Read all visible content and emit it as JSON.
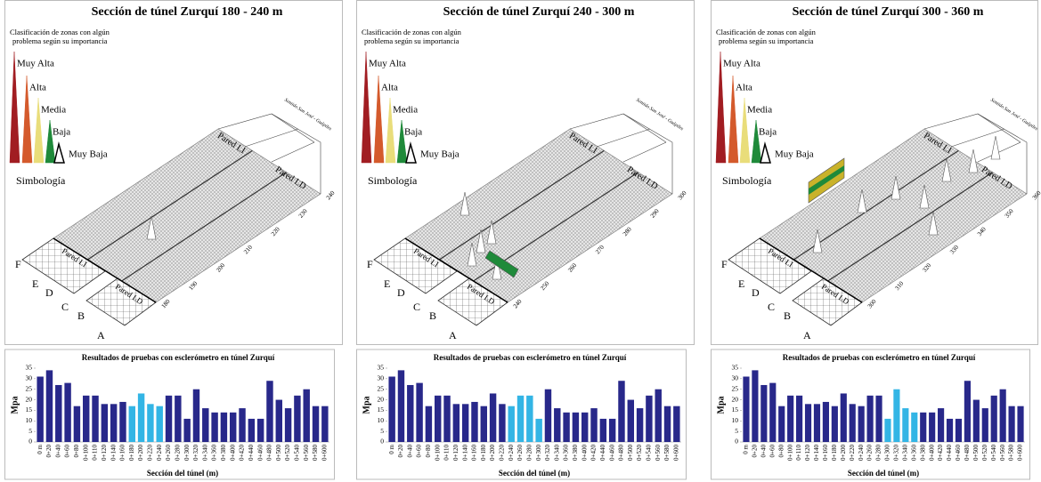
{
  "diagrams": [
    {
      "title": "Sección de túnel Zurquí 180 - 240 m",
      "legend_title": [
        "Clasificación de zonas con algún",
        "problema según su importancia"
      ],
      "levels": [
        "Muy Alta",
        "Alta",
        "Media",
        "Baja",
        "Muy Baja"
      ],
      "symbology": "Simbología",
      "walls": [
        "Pared LI",
        "Pared LD"
      ],
      "direction": "Sentido San José - Guápiles",
      "letters": [
        "A",
        "B",
        "C",
        "D",
        "E",
        "F"
      ],
      "distances": [
        "180",
        "190",
        "200",
        "210",
        "220",
        "230",
        "240"
      ]
    },
    {
      "title": "Sección de túnel Zurquí 240 - 300 m",
      "legend_title": [
        "Clasificación de zonas con algún",
        "problema según su importancia"
      ],
      "levels": [
        "Muy Alta",
        "Alta",
        "Media",
        "Baja",
        "Muy Baja"
      ],
      "symbology": "Simbología",
      "walls": [
        "Pared LI",
        "Pared LD"
      ],
      "direction": "Sentido San José - Guápiles",
      "letters": [
        "A",
        "B",
        "C",
        "D",
        "E",
        "F"
      ],
      "distances": [
        "240",
        "250",
        "260",
        "270",
        "280",
        "290",
        "300"
      ]
    },
    {
      "title": "Sección de túnel Zurquí 300 - 360 m",
      "legend_title": [
        "Clasificación de zonas con algún",
        "problema según su importancia"
      ],
      "levels": [
        "Muy Alta",
        "Alta",
        "Media",
        "Baja",
        "Muy Baja"
      ],
      "symbology": "Simbología",
      "walls": [
        "Pared LI",
        "Pared LD"
      ],
      "direction": "Sentido San José - Guápiles",
      "letters": [
        "A",
        "B",
        "C",
        "D",
        "E",
        "F"
      ],
      "distances": [
        "300",
        "310",
        "320",
        "330",
        "340",
        "350",
        "360"
      ]
    }
  ],
  "chart_data": [
    {
      "type": "bar",
      "title": "Resultados de pruebas con esclerómetro en túnel Zurquí",
      "x_label": "Sección del túnel (m)",
      "y_label": "Mpa",
      "categories": [
        "0 m",
        "0+20",
        "0+40",
        "0+60",
        "0+80",
        "0+100",
        "0+110",
        "0+120",
        "0+140",
        "0+160",
        "0+180",
        "0+200",
        "0+220",
        "0+240",
        "0+260",
        "0+280",
        "0+300",
        "0+320",
        "0+340",
        "0+360",
        "0+380",
        "0+400",
        "0+420",
        "0+440",
        "0+460",
        "0+480",
        "0+500",
        "0+520",
        "0+540",
        "0+560",
        "0+580",
        "0+600"
      ],
      "values": [
        31,
        34,
        27,
        28,
        17,
        22,
        22,
        18,
        18,
        19,
        17,
        23,
        18,
        17,
        22,
        22,
        11,
        25,
        16,
        14,
        14,
        14,
        16,
        11,
        11,
        29,
        20,
        16,
        22,
        25,
        17,
        17
      ],
      "colors": [
        "#28288a",
        "#28288a",
        "#28288a",
        "#28288a",
        "#28288a",
        "#28288a",
        "#28288a",
        "#28288a",
        "#28288a",
        "#28288a",
        "#33b5e5",
        "#33b5e5",
        "#33b5e5",
        "#33b5e5",
        "#28288a",
        "#28288a",
        "#28288a",
        "#28288a",
        "#28288a",
        "#28288a",
        "#28288a",
        "#28288a",
        "#28288a",
        "#28288a",
        "#28288a",
        "#28288a",
        "#28288a",
        "#28288a",
        "#28288a",
        "#28288a",
        "#28288a",
        "#28288a"
      ],
      "ylim": [
        0,
        35
      ],
      "yticks": [
        0,
        5,
        10,
        15,
        20,
        25,
        30,
        35
      ]
    },
    {
      "type": "bar",
      "title": "Resultados de pruebas con esclerómetro en túnel Zurquí",
      "x_label": "Sección del túnel (m)",
      "y_label": "Mpa",
      "categories": [
        "0 m",
        "0+20",
        "0+40",
        "0+60",
        "0+80",
        "0+100",
        "0+110",
        "0+120",
        "0+140",
        "0+160",
        "0+180",
        "0+200",
        "0+220",
        "0+240",
        "0+260",
        "0+280",
        "0+300",
        "0+320",
        "0+340",
        "0+360",
        "0+380",
        "0+400",
        "0+420",
        "0+440",
        "0+460",
        "0+480",
        "0+500",
        "0+520",
        "0+540",
        "0+560",
        "0+580",
        "0+600"
      ],
      "values": [
        31,
        34,
        27,
        28,
        17,
        22,
        22,
        18,
        18,
        19,
        17,
        23,
        18,
        17,
        22,
        22,
        11,
        25,
        16,
        14,
        14,
        14,
        16,
        11,
        11,
        29,
        20,
        16,
        22,
        25,
        17,
        17
      ],
      "colors": [
        "#28288a",
        "#28288a",
        "#28288a",
        "#28288a",
        "#28288a",
        "#28288a",
        "#28288a",
        "#28288a",
        "#28288a",
        "#28288a",
        "#28288a",
        "#28288a",
        "#28288a",
        "#33b5e5",
        "#33b5e5",
        "#33b5e5",
        "#33b5e5",
        "#28288a",
        "#28288a",
        "#28288a",
        "#28288a",
        "#28288a",
        "#28288a",
        "#28288a",
        "#28288a",
        "#28288a",
        "#28288a",
        "#28288a",
        "#28288a",
        "#28288a",
        "#28288a",
        "#28288a"
      ],
      "ylim": [
        0,
        35
      ],
      "yticks": [
        0,
        5,
        10,
        15,
        20,
        25,
        30,
        35
      ]
    },
    {
      "type": "bar",
      "title": "Resultados de pruebas con esclerómetro en túnel Zurquí",
      "x_label": "Sección del túnel (m)",
      "y_label": "Mpa",
      "categories": [
        "0 m",
        "0+20",
        "0+40",
        "0+60",
        "0+80",
        "0+100",
        "0+110",
        "0+120",
        "0+140",
        "0+160",
        "0+180",
        "0+200",
        "0+220",
        "0+240",
        "0+260",
        "0+280",
        "0+300",
        "0+320",
        "0+340",
        "0+360",
        "0+380",
        "0+400",
        "0+420",
        "0+440",
        "0+460",
        "0+480",
        "0+500",
        "0+520",
        "0+540",
        "0+560",
        "0+580",
        "0+600"
      ],
      "values": [
        31,
        34,
        27,
        28,
        17,
        22,
        22,
        18,
        18,
        19,
        17,
        23,
        18,
        17,
        22,
        22,
        11,
        25,
        16,
        14,
        14,
        14,
        16,
        11,
        11,
        29,
        20,
        16,
        22,
        25,
        17,
        17
      ],
      "colors": [
        "#28288a",
        "#28288a",
        "#28288a",
        "#28288a",
        "#28288a",
        "#28288a",
        "#28288a",
        "#28288a",
        "#28288a",
        "#28288a",
        "#28288a",
        "#28288a",
        "#28288a",
        "#28288a",
        "#28288a",
        "#28288a",
        "#33b5e5",
        "#33b5e5",
        "#33b5e5",
        "#33b5e5",
        "#28288a",
        "#28288a",
        "#28288a",
        "#28288a",
        "#28288a",
        "#28288a",
        "#28288a",
        "#28288a",
        "#28288a",
        "#28288a",
        "#28288a",
        "#28288a"
      ],
      "ylim": [
        0,
        35
      ],
      "yticks": [
        0,
        5,
        10,
        15,
        20,
        25,
        30,
        35
      ]
    }
  ]
}
